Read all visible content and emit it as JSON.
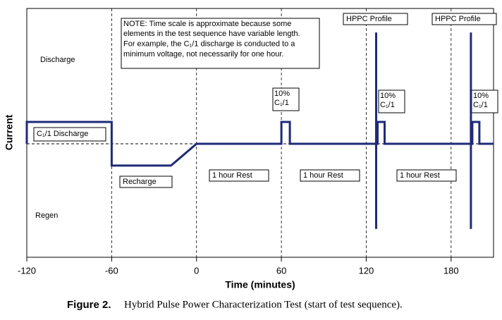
{
  "chart_data": {
    "type": "line",
    "x_label": "Time (minutes)",
    "y_label": "Current",
    "x": [
      -120,
      -120,
      -60,
      -60,
      -18,
      0,
      60,
      60,
      66,
      66,
      127,
      127,
      127,
      127,
      128,
      128,
      133,
      133,
      194,
      194,
      194,
      194,
      195,
      195,
      200,
      200,
      210
    ],
    "values": [
      0,
      1,
      1,
      -1,
      -1,
      0,
      0,
      1,
      1,
      0,
      0,
      5.1,
      -3.9,
      0,
      0,
      1,
      1,
      0,
      0,
      5.1,
      -3.9,
      0,
      0,
      1,
      1,
      0,
      0
    ],
    "color": "#1f2a78",
    "xlim": [
      -120,
      210
    ],
    "xticks": [
      -120,
      -60,
      0,
      60,
      120,
      180
    ],
    "ylim": [
      -5.2,
      6.2
    ],
    "grid": true,
    "annotations": [
      "Discharge",
      "Regen",
      "C₁/1 Discharge",
      "Recharge",
      "1 hour Rest",
      "1 hour Rest",
      "1 hour Rest",
      "HPPC Profile",
      "HPPC Profile"
    ],
    "pulse_labels": [
      [
        "10%",
        "C₁/1"
      ],
      [
        "10%",
        "C₁/1"
      ],
      [
        "10%",
        "C₁/1"
      ]
    ],
    "note": [
      "NOTE: Time scale is approximate because some",
      "elements in the test sequence have variable length.",
      "For example, the C₁/1 discharge is conducted to a",
      "minimum voltage, not necessarily for one hour."
    ],
    "caption_label": "Figure 2.",
    "caption": "Hybrid Pulse Power Characterization Test (start of test sequence)."
  }
}
